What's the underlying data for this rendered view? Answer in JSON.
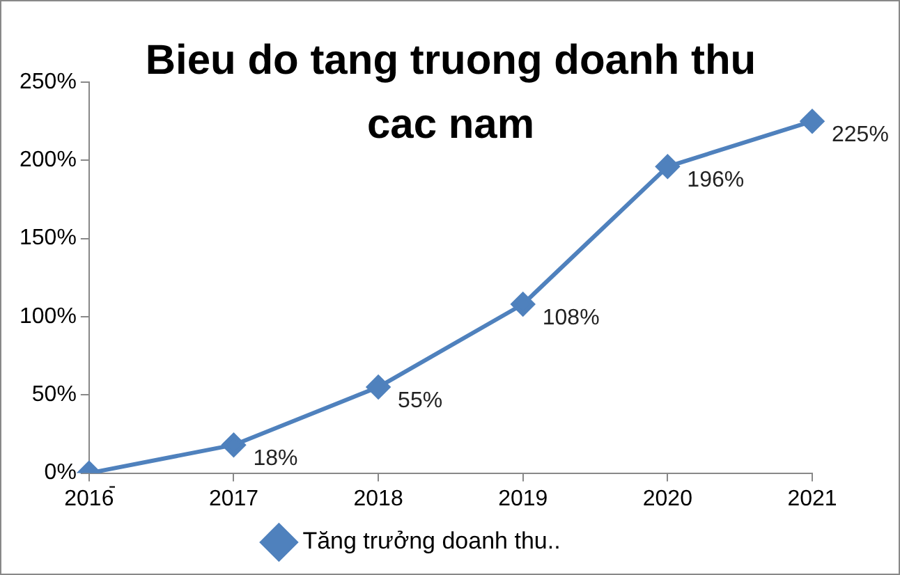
{
  "chart_data": {
    "type": "line",
    "title": "Bieu do tang truong doanh thu cac nam",
    "categories": [
      "2016",
      "2017",
      "2018",
      "2019",
      "2020",
      "2021"
    ],
    "series": [
      {
        "name": "Tăng trưởng doanh thu..",
        "color": "#4f81bd",
        "values": [
          0,
          18,
          55,
          108,
          196,
          225
        ],
        "value_labels": [
          "-",
          "18%",
          "55%",
          "108%",
          "196%",
          "225%"
        ]
      }
    ],
    "ylim": [
      0,
      250
    ],
    "yticks": [
      {
        "value": 0,
        "label": "0%"
      },
      {
        "value": 50,
        "label": "50%"
      },
      {
        "value": 100,
        "label": "100%"
      },
      {
        "value": 150,
        "label": "150%"
      },
      {
        "value": 200,
        "label": "200%"
      },
      {
        "value": 250,
        "label": "250%"
      }
    ],
    "grid": false,
    "legend": "bottom",
    "marker": "diamond",
    "line_style": "solid"
  }
}
